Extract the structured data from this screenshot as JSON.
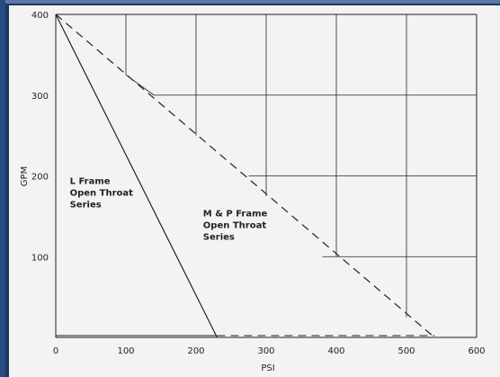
{
  "chart_data": {
    "type": "line",
    "xlabel": "PSI",
    "ylabel": "GPM",
    "xlim": [
      0,
      600
    ],
    "ylim": [
      0,
      400
    ],
    "x_ticks": [
      "0",
      "100",
      "200",
      "300",
      "400",
      "500",
      "600"
    ],
    "y_ticks": [
      "100",
      "200",
      "300",
      "400"
    ],
    "grid": "partial",
    "series": [
      {
        "style": "solid",
        "x": [
          0,
          230
        ],
        "y": [
          400,
          0
        ]
      },
      {
        "style": "dashed",
        "x": [
          0,
          540
        ],
        "y": [
          400,
          0
        ]
      }
    ],
    "annotations": [
      {
        "lines": [
          "L Frame",
          "Open Throat",
          "Series"
        ],
        "x": 20,
        "y": 190
      },
      {
        "lines": [
          "M & P Frame",
          "Open Throat",
          "Series"
        ],
        "x": 210,
        "y": 150
      }
    ],
    "colors": {
      "background": "#1c3866",
      "plot_background": "#f3f3f3",
      "lines": "#222222"
    }
  }
}
